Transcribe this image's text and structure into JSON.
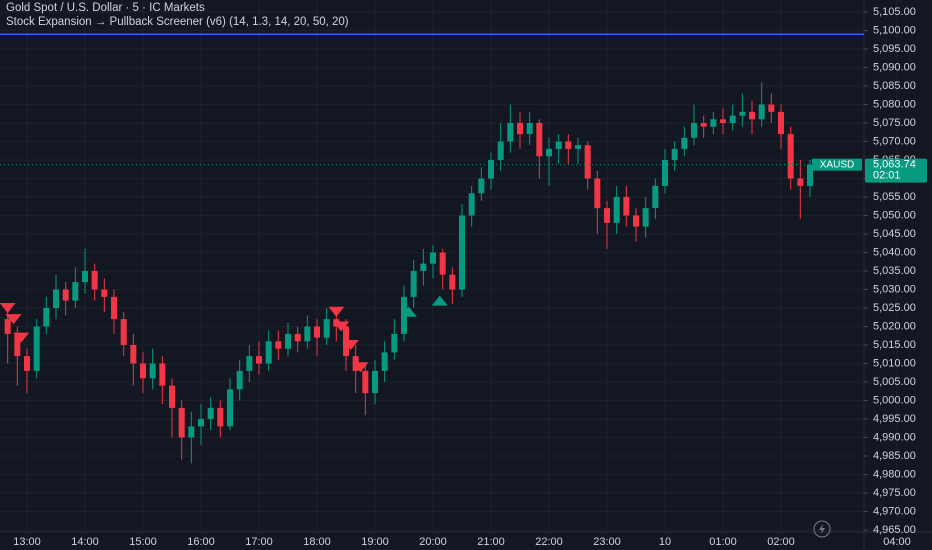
{
  "chart_data": {
    "type": "candlestick",
    "title": "Gold Spot / U.S. Dollar · 5 · IC Markets",
    "subtitle": "Stock Expansion → Pullback Screener (v6) (14, 1.3, 14, 20, 50, 20)",
    "up_color": "#089981",
    "down_color": "#f23645",
    "grid": true,
    "open": [
      5022,
      5018,
      5012,
      5008,
      5020,
      5025,
      5030,
      5027,
      5032,
      5035,
      5030,
      5028,
      5022,
      5015,
      5010,
      5006,
      5010,
      5004,
      4998,
      4990,
      4993,
      4995,
      4998,
      4993,
      5003,
      5008,
      5012,
      5010,
      5016,
      5014,
      5018,
      5016,
      5020,
      5017,
      5022,
      5020,
      5012,
      5008,
      5002,
      5008,
      5013,
      5018,
      5028,
      5035,
      5037,
      5040,
      5034,
      5030,
      5050,
      5056,
      5060,
      5065,
      5070,
      5075,
      5072,
      5075,
      5066,
      5068,
      5070,
      5068,
      5069,
      5060,
      5052,
      5048,
      5055,
      5050,
      5047,
      5052,
      5058,
      5065,
      5068,
      5071,
      5075,
      5074,
      5076,
      5075,
      5077,
      5078,
      5076,
      5080,
      5078,
      5072,
      5060,
      5058
    ],
    "high": [
      5026,
      5020,
      5014,
      5022,
      5028,
      5034,
      5032,
      5036,
      5041,
      5037,
      5033,
      5030,
      5024,
      5018,
      5013,
      5014,
      5012,
      5006,
      5000,
      4997,
      4999,
      5001,
      5000,
      5006,
      5011,
      5015,
      5016,
      5019,
      5019,
      5021,
      5020,
      5023,
      5022,
      5025,
      5024,
      5022,
      5015,
      5010,
      5011,
      5016,
      5022,
      5031,
      5038,
      5041,
      5042,
      5041,
      5036,
      5053,
      5058,
      5063,
      5067,
      5075,
      5080,
      5078,
      5078,
      5076,
      5071,
      5072,
      5072,
      5071,
      5070,
      5062,
      5054,
      5058,
      5058,
      5052,
      5055,
      5060,
      5068,
      5070,
      5074,
      5080,
      5077,
      5078,
      5079,
      5080,
      5083,
      5081,
      5086,
      5083,
      5080,
      5074,
      5065,
      5065
    ],
    "low": [
      5010,
      5004,
      5002,
      5006,
      5018,
      5022,
      5023,
      5025,
      5029,
      5027,
      5024,
      5018,
      5012,
      5004,
      5002,
      5003,
      4999,
      4990,
      4984,
      4983,
      4988,
      4992,
      4990,
      4992,
      5000,
      5005,
      5007,
      5008,
      5011,
      5012,
      5013,
      5014,
      5012,
      5015,
      5016,
      5008,
      5002,
      4996,
      4999,
      5005,
      5011,
      5016,
      5025,
      5031,
      5033,
      5030,
      5026,
      5028,
      5047,
      5054,
      5057,
      5062,
      5067,
      5068,
      5069,
      5060,
      5058,
      5064,
      5064,
      5064,
      5057,
      5045,
      5041,
      5045,
      5047,
      5043,
      5044,
      5049,
      5056,
      5062,
      5066,
      5069,
      5071,
      5072,
      5072,
      5073,
      5074,
      5072,
      5074,
      5075,
      5068,
      5057,
      5049,
      5055
    ],
    "close": [
      5018,
      5012,
      5008,
      5020,
      5025,
      5030,
      5027,
      5032,
      5035,
      5030,
      5028,
      5022,
      5015,
      5010,
      5006,
      5010,
      5004,
      4998,
      4990,
      4993,
      4995,
      4998,
      4993,
      5003,
      5008,
      5012,
      5010,
      5016,
      5014,
      5018,
      5016,
      5020,
      5017,
      5022,
      5020,
      5012,
      5008,
      5002,
      5008,
      5013,
      5018,
      5028,
      5035,
      5037,
      5040,
      5034,
      5030,
      5050,
      5056,
      5060,
      5065,
      5070,
      5075,
      5072,
      5075,
      5066,
      5068,
      5070,
      5068,
      5069,
      5060,
      5052,
      5048,
      5055,
      5050,
      5047,
      5052,
      5058,
      5065,
      5068,
      5071,
      5075,
      5074,
      5076,
      5075,
      5077,
      5078,
      5076,
      5080,
      5078,
      5072,
      5060,
      5058,
      5063.74
    ],
    "xticks": [
      {
        "value": 2,
        "label": "13:00"
      },
      {
        "value": 8,
        "label": "14:00"
      },
      {
        "value": 14,
        "label": "15:00"
      },
      {
        "value": 20,
        "label": "16:00"
      },
      {
        "value": 26,
        "label": "17:00"
      },
      {
        "value": 32,
        "label": "18:00"
      },
      {
        "value": 38,
        "label": "19:00"
      },
      {
        "value": 44,
        "label": "20:00"
      },
      {
        "value": 50,
        "label": "21:00"
      },
      {
        "value": 56,
        "label": "22:00"
      },
      {
        "value": 62,
        "label": "23:00"
      },
      {
        "value": 68,
        "label": "10"
      },
      {
        "value": 74,
        "label": "01:00"
      },
      {
        "value": 80,
        "label": "02:00"
      },
      {
        "value": 92,
        "label": "04:00"
      }
    ],
    "ylim": [
      4965,
      5105
    ],
    "yticks": [
      {
        "value": 4965,
        "label": "4,965.00"
      },
      {
        "value": 4970,
        "label": "4,970.00"
      },
      {
        "value": 4975,
        "label": "4,975.00"
      },
      {
        "value": 4980,
        "label": "4,980.00"
      },
      {
        "value": 4985,
        "label": "4,985.00"
      },
      {
        "value": 4990,
        "label": "4,990.00"
      },
      {
        "value": 4995,
        "label": "4,995.00"
      },
      {
        "value": 5000,
        "label": "5,000.00"
      },
      {
        "value": 5005,
        "label": "5,005.00"
      },
      {
        "value": 5010,
        "label": "5,010.00"
      },
      {
        "value": 5015,
        "label": "5,015.00"
      },
      {
        "value": 5020,
        "label": "5,020.00"
      },
      {
        "value": 5025,
        "label": "5,025.00"
      },
      {
        "value": 5030,
        "label": "5,030.00"
      },
      {
        "value": 5035,
        "label": "5,035.00"
      },
      {
        "value": 5040,
        "label": "5,040.00"
      },
      {
        "value": 5045,
        "label": "5,045.00"
      },
      {
        "value": 5050,
        "label": "5,050.00"
      },
      {
        "value": 5055,
        "label": "5,055.00"
      },
      {
        "value": 5060,
        "label": "5,060.00"
      },
      {
        "value": 5065,
        "label": "5,065.00"
      },
      {
        "value": 5070,
        "label": "5,070.00"
      },
      {
        "value": 5075,
        "label": "5,075.00"
      },
      {
        "value": 5080,
        "label": "5,080.00"
      },
      {
        "value": 5085,
        "label": "5,085.00"
      },
      {
        "value": 5090,
        "label": "5,090.00"
      },
      {
        "value": 5095,
        "label": "5,095.00"
      },
      {
        "value": 5100,
        "label": "5,100.00"
      },
      {
        "value": 5105,
        "label": "5,105.00"
      }
    ],
    "hline": {
      "value": 5099,
      "color": "#2962ff"
    },
    "sell_signals": {
      "color": "#f23645",
      "x": [
        0,
        0.6,
        1.4,
        34,
        34.5,
        35.5,
        36.5
      ],
      "values": [
        5025,
        5022,
        5017,
        5024,
        5020,
        5015,
        5009
      ]
    },
    "buy_signals": {
      "color": "#089981",
      "x": [
        41.5,
        44.7
      ],
      "values": [
        5024,
        5027
      ]
    },
    "last_price": {
      "symbol": "XAUSD",
      "value": 5063.74,
      "label": "5,063.74",
      "countdown": "02:01",
      "color": "#089981"
    }
  }
}
